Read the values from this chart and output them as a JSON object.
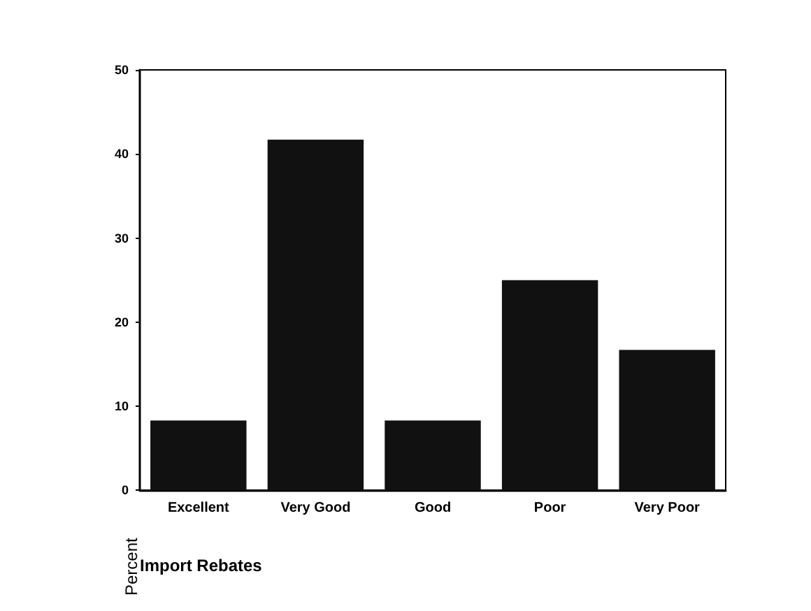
{
  "chart_data": {
    "type": "bar",
    "xlabel": "Import Rebates",
    "ylabel": "Percent",
    "categories": [
      "Excellent",
      "Very Good",
      "Good",
      "Poor",
      "Very Poor"
    ],
    "values": [
      8.3,
      41.7,
      8.3,
      25,
      16.7
    ],
    "color": "#111111",
    "ylim": [
      0,
      50
    ],
    "yticks": [
      0,
      10,
      20,
      30,
      40,
      50
    ],
    "grid": false
  }
}
